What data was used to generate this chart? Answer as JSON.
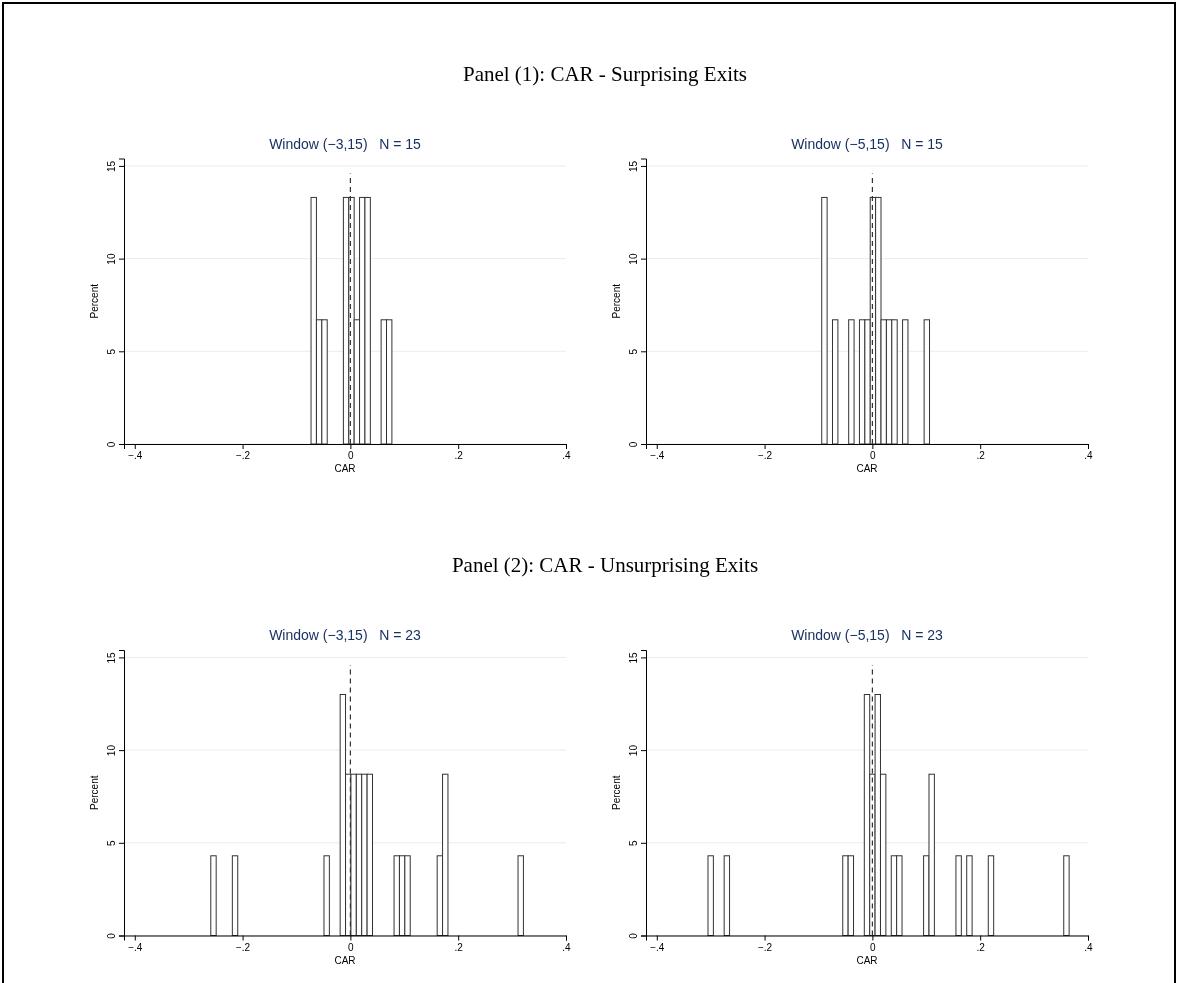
{
  "chart_data": [
    {
      "type": "histogram",
      "title": "Window (−3,15)   N = 15",
      "annotations": [
        "Panel (1): CAR - Surprising Exits"
      ],
      "xlabel": "CAR",
      "ylabel": "Percent",
      "color": "#ffffff",
      "bins": [
        -0.073,
        -0.063,
        -0.053,
        -0.043,
        -0.033,
        -0.023,
        -0.013,
        -0.003,
        0.007,
        0.017,
        0.027,
        0.037,
        0.047,
        0.057,
        0.067,
        0.077
      ],
      "values": [
        13.3,
        6.7,
        6.7,
        0,
        0,
        0,
        13.3,
        13.3,
        6.7,
        13.3,
        13.3,
        0,
        0,
        6.7,
        6.7
      ],
      "xlim": [
        -0.42,
        0.4
      ],
      "ylim": [
        0,
        15.4
      ],
      "xticks": [
        {
          "value": -0.4,
          "label": "−.4"
        },
        {
          "value": -0.2,
          "label": "−.2"
        },
        {
          "value": 0,
          "label": "0"
        },
        {
          "value": 0.2,
          "label": ".2"
        },
        {
          "value": 0.4,
          "label": ".4"
        }
      ],
      "yticks": [
        0,
        5,
        10,
        15
      ],
      "grid": "y",
      "ref_lines": [
        {
          "axis": "x",
          "value": 0,
          "line_style": "dashed"
        }
      ]
    },
    {
      "type": "histogram",
      "title": "Window (−5,15)   N = 15",
      "xlabel": "CAR",
      "ylabel": "Percent",
      "color": "#ffffff",
      "bins": [
        -0.094,
        -0.084,
        -0.074,
        -0.064,
        -0.054,
        -0.044,
        -0.034,
        -0.024,
        -0.014,
        -0.004,
        0.006,
        0.016,
        0.026,
        0.036,
        0.046,
        0.056,
        0.066,
        0.076,
        0.086,
        0.096,
        0.106
      ],
      "values": [
        13.3,
        0,
        6.7,
        0,
        0,
        6.7,
        0,
        6.7,
        6.7,
        13.3,
        13.3,
        6.7,
        6.7,
        6.7,
        0,
        6.7,
        0,
        0,
        0,
        6.7
      ],
      "xlim": [
        -0.42,
        0.4
      ],
      "ylim": [
        0,
        15.4
      ],
      "xticks": [
        {
          "value": -0.4,
          "label": "−.4"
        },
        {
          "value": -0.2,
          "label": "−.2"
        },
        {
          "value": 0,
          "label": "0"
        },
        {
          "value": 0.2,
          "label": ".2"
        },
        {
          "value": 0.4,
          "label": ".4"
        }
      ],
      "yticks": [
        0,
        5,
        10,
        15
      ],
      "grid": "y",
      "ref_lines": [
        {
          "axis": "x",
          "value": 0,
          "line_style": "dashed"
        }
      ]
    },
    {
      "type": "histogram",
      "title": "Window (−3,15)   N = 23",
      "annotations": [
        "Panel (2): CAR - Unsurprising Exits"
      ],
      "xlabel": "CAR",
      "ylabel": "Percent",
      "color": "#ffffff",
      "bins": [
        -0.259,
        -0.249,
        -0.239,
        -0.229,
        -0.219,
        -0.209,
        -0.199,
        -0.189,
        -0.179,
        -0.169,
        -0.159,
        -0.149,
        -0.139,
        -0.129,
        -0.119,
        -0.109,
        -0.099,
        -0.089,
        -0.079,
        -0.069,
        -0.059,
        -0.049,
        -0.039,
        -0.029,
        -0.019,
        -0.009,
        0.001,
        0.011,
        0.021,
        0.031,
        0.041,
        0.051,
        0.061,
        0.071,
        0.081,
        0.091,
        0.101,
        0.111,
        0.121,
        0.131,
        0.141,
        0.151,
        0.161,
        0.171,
        0.181,
        0.191,
        0.201,
        0.211,
        0.221,
        0.231,
        0.241,
        0.251,
        0.261,
        0.271,
        0.281,
        0.291,
        0.301,
        0.311,
        0.321
      ],
      "values": [
        4.3,
        0,
        0,
        0,
        4.3,
        0,
        0,
        0,
        0,
        0,
        0,
        0,
        0,
        0,
        0,
        0,
        0,
        0,
        0,
        0,
        0,
        4.3,
        0,
        0,
        13.0,
        8.7,
        8.7,
        8.7,
        8.7,
        8.7,
        0,
        0,
        0,
        0,
        4.3,
        4.3,
        4.3,
        0,
        0,
        0,
        0,
        0,
        4.3,
        8.7,
        0,
        0,
        0,
        0,
        0,
        0,
        0,
        0,
        0,
        0,
        0,
        0,
        0,
        4.3
      ],
      "xlim": [
        -0.42,
        0.4
      ],
      "ylim": [
        0,
        15.4
      ],
      "xticks": [
        {
          "value": -0.4,
          "label": "−.4"
        },
        {
          "value": -0.2,
          "label": "−.2"
        },
        {
          "value": 0,
          "label": "0"
        },
        {
          "value": 0.2,
          "label": ".2"
        },
        {
          "value": 0.4,
          "label": ".4"
        }
      ],
      "yticks": [
        0,
        5,
        10,
        15
      ],
      "grid": "y",
      "ref_lines": [
        {
          "axis": "x",
          "value": 0,
          "line_style": "dashed"
        }
      ]
    },
    {
      "type": "histogram",
      "title": "Window (−5,15)   N = 23",
      "xlabel": "CAR",
      "ylabel": "Percent",
      "color": "#ffffff",
      "bins": [
        -0.305,
        -0.295,
        -0.285,
        -0.275,
        -0.265,
        -0.255,
        -0.245,
        -0.235,
        -0.225,
        -0.215,
        -0.205,
        -0.195,
        -0.185,
        -0.175,
        -0.165,
        -0.155,
        -0.145,
        -0.135,
        -0.125,
        -0.115,
        -0.105,
        -0.095,
        -0.085,
        -0.075,
        -0.065,
        -0.055,
        -0.045,
        -0.035,
        -0.025,
        -0.015,
        -0.005,
        0.005,
        0.015,
        0.025,
        0.035,
        0.045,
        0.055,
        0.065,
        0.075,
        0.085,
        0.095,
        0.105,
        0.115,
        0.125,
        0.135,
        0.145,
        0.155,
        0.165,
        0.175,
        0.185,
        0.195,
        0.205,
        0.215,
        0.225,
        0.235,
        0.245,
        0.255,
        0.265,
        0.275,
        0.285,
        0.295,
        0.305,
        0.315,
        0.325,
        0.335,
        0.345,
        0.355,
        0.365
      ],
      "values": [
        4.3,
        0,
        0,
        4.3,
        0,
        0,
        0,
        0,
        0,
        0,
        0,
        0,
        0,
        0,
        0,
        0,
        0,
        0,
        0,
        0,
        0,
        0,
        0,
        0,
        0,
        4.3,
        4.3,
        0,
        0,
        13.0,
        8.7,
        13.0,
        8.7,
        0,
        4.3,
        4.3,
        0,
        0,
        0,
        0,
        4.3,
        8.7,
        0,
        0,
        0,
        0,
        4.3,
        0,
        4.3,
        0,
        0,
        0,
        4.3,
        0,
        0,
        0,
        0,
        0,
        0,
        0,
        0,
        0,
        0,
        0,
        0,
        0,
        4.3
      ],
      "xlim": [
        -0.42,
        0.4
      ],
      "ylim": [
        0,
        15.4
      ],
      "xticks": [
        {
          "value": -0.4,
          "label": "−.4"
        },
        {
          "value": -0.2,
          "label": "−.2"
        },
        {
          "value": 0,
          "label": "0"
        },
        {
          "value": 0.2,
          "label": ".2"
        },
        {
          "value": 0.4,
          "label": ".4"
        }
      ],
      "yticks": [
        0,
        5,
        10,
        15
      ],
      "grid": "y",
      "ref_lines": [
        {
          "axis": "x",
          "value": 0,
          "line_style": "dashed"
        }
      ]
    }
  ]
}
